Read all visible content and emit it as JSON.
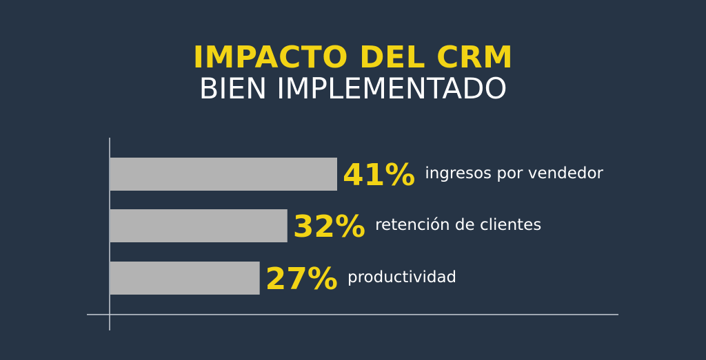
{
  "chart_data": {
    "type": "bar",
    "orientation": "horizontal",
    "title": "IMPACTO DEL CRM",
    "subtitle": "BIEN IMPLEMENTADO",
    "categories": [
      "ingresos por vendedor",
      "retención de clientes",
      "productividad"
    ],
    "values": [
      41,
      32,
      27
    ],
    "value_labels": [
      "41%",
      "32%",
      "27%"
    ],
    "unit": "%",
    "grid": false,
    "legend": "none"
  },
  "colors": {
    "background": "#263445",
    "accent": "#f2d415",
    "bar": "#b3b3b3",
    "axis": "#c9ced6",
    "text": "#ffffff"
  }
}
